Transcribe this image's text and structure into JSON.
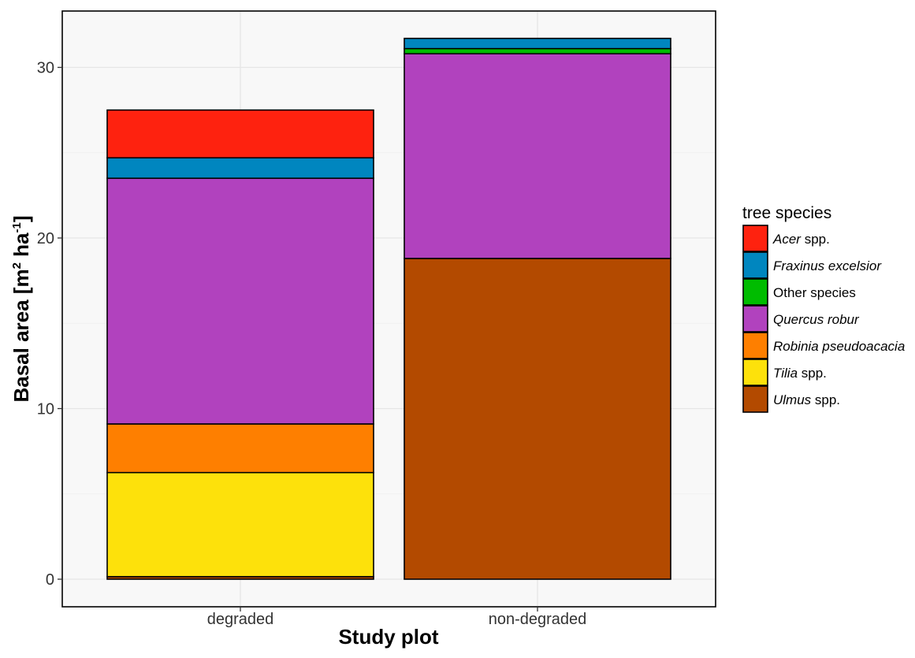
{
  "chart_data": {
    "type": "bar",
    "stacked": true,
    "categories": [
      "degraded",
      "non-degraded"
    ],
    "xlabel": "Study plot",
    "ylabel": {
      "base": "Basal area [m",
      "sup1": "2",
      "mid": " ha",
      "sup2": "-1",
      "end": "]"
    },
    "ylim": [
      0,
      32.2
    ],
    "yticks": [
      0,
      10,
      20,
      30
    ],
    "grid": true,
    "legend_position": "right",
    "legend_title": "tree species",
    "series": [
      {
        "name": "Ulmus spp.",
        "name_italic": "Ulmus",
        "name_rest": " spp.",
        "color": "#B34A00",
        "values": [
          0.15,
          18.8
        ]
      },
      {
        "name": "Tilia spp.",
        "name_italic": "Tilia",
        "name_rest": " spp.",
        "color": "#FDE10B",
        "values": [
          6.1,
          0
        ]
      },
      {
        "name": "Robinia pseudoacacia",
        "name_italic": "Robinia pseudoacacia",
        "name_rest": "",
        "color": "#FE7F00",
        "values": [
          2.85,
          0
        ]
      },
      {
        "name": "Quercus robur",
        "name_italic": "Quercus robur",
        "name_rest": "",
        "color": "#B142BE",
        "values": [
          14.4,
          12.0
        ]
      },
      {
        "name": "Other species",
        "name_italic": "",
        "name_rest": "Other species",
        "color": "#00BC00",
        "values": [
          0,
          0.3
        ]
      },
      {
        "name": "Fraxinus excelsior",
        "name_italic": "Fraxinus excelsior",
        "name_rest": "",
        "color": "#0086BF",
        "values": [
          1.2,
          0.6
        ]
      },
      {
        "name": "Acer spp.",
        "name_italic": "Acer",
        "name_rest": " spp.",
        "color": "#FE220F",
        "values": [
          2.8,
          0
        ]
      }
    ],
    "legend_order": [
      "Acer spp.",
      "Fraxinus excelsior",
      "Other species",
      "Quercus robur",
      "Robinia pseudoacacia",
      "Tilia spp.",
      "Ulmus spp."
    ]
  }
}
